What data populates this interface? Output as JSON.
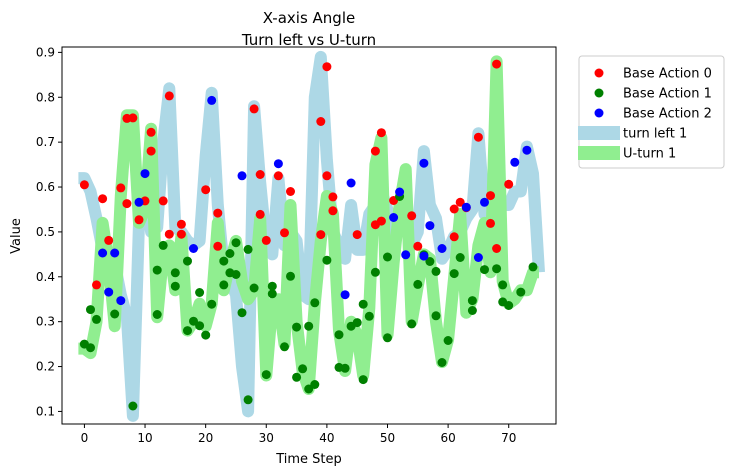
{
  "chart_data": {
    "type": "scatter",
    "title": "X-axis Angle",
    "subtitle": "Turn left vs U-turn",
    "xlabel": "Time Step",
    "ylabel": "Value",
    "xlim": [
      -3.7,
      77.8
    ],
    "ylim": [
      0.072,
      0.912
    ],
    "xticks": [
      0,
      10,
      20,
      30,
      40,
      50,
      60,
      70
    ],
    "yticks": [
      0.1,
      0.2,
      0.3,
      0.4,
      0.5,
      0.6,
      0.7,
      0.8,
      0.9
    ],
    "legend_position": "outside-right-top",
    "colors": {
      "base0": "#ff0000",
      "base1": "#008000",
      "base2": "#0000ff",
      "band_turn_left": "#add8e6",
      "band_uturn": "#90ee90"
    },
    "series": [
      {
        "name": "Base Action 0",
        "kind": "points",
        "points": [
          [
            0,
            0.605
          ],
          [
            2,
            0.382
          ],
          [
            3,
            0.574
          ],
          [
            4,
            0.481
          ],
          [
            6,
            0.598
          ],
          [
            7,
            0.563
          ],
          [
            7,
            0.753
          ],
          [
            8,
            0.754
          ],
          [
            9,
            0.527
          ],
          [
            10,
            0.569
          ],
          [
            11,
            0.722
          ],
          [
            11,
            0.68
          ],
          [
            13,
            0.569
          ],
          [
            14,
            0.803
          ],
          [
            14,
            0.495
          ],
          [
            16,
            0.517
          ],
          [
            16,
            0.495
          ],
          [
            20,
            0.594
          ],
          [
            22,
            0.542
          ],
          [
            22,
            0.468
          ],
          [
            28,
            0.774
          ],
          [
            29,
            0.628
          ],
          [
            29,
            0.539
          ],
          [
            30,
            0.481
          ],
          [
            32,
            0.625
          ],
          [
            33,
            0.498
          ],
          [
            34,
            0.59
          ],
          [
            39,
            0.746
          ],
          [
            39,
            0.494
          ],
          [
            40,
            0.868
          ],
          [
            40,
            0.625
          ],
          [
            41,
            0.578
          ],
          [
            41,
            0.547
          ],
          [
            45,
            0.494
          ],
          [
            48,
            0.68
          ],
          [
            48,
            0.516
          ],
          [
            49,
            0.524
          ],
          [
            49,
            0.721
          ],
          [
            51,
            0.57
          ],
          [
            54,
            0.536
          ],
          [
            55,
            0.468
          ],
          [
            61,
            0.551
          ],
          [
            61,
            0.489
          ],
          [
            62,
            0.566
          ],
          [
            63,
            0.554
          ],
          [
            65,
            0.711
          ],
          [
            67,
            0.519
          ],
          [
            67,
            0.581
          ],
          [
            68,
            0.874
          ],
          [
            68,
            0.463
          ],
          [
            70,
            0.606
          ]
        ]
      },
      {
        "name": "Base Action 1",
        "kind": "points",
        "points": [
          [
            0,
            0.25
          ],
          [
            1,
            0.242
          ],
          [
            1,
            0.327
          ],
          [
            2,
            0.305
          ],
          [
            5,
            0.317
          ],
          [
            8,
            0.112
          ],
          [
            12,
            0.316
          ],
          [
            12,
            0.415
          ],
          [
            13,
            0.47
          ],
          [
            15,
            0.409
          ],
          [
            15,
            0.379
          ],
          [
            17,
            0.28
          ],
          [
            17,
            0.435
          ],
          [
            18,
            0.301
          ],
          [
            19,
            0.365
          ],
          [
            19,
            0.291
          ],
          [
            20,
            0.27
          ],
          [
            21,
            0.339
          ],
          [
            23,
            0.382
          ],
          [
            23,
            0.435
          ],
          [
            24,
            0.452
          ],
          [
            24,
            0.409
          ],
          [
            25,
            0.476
          ],
          [
            25,
            0.405
          ],
          [
            26,
            0.32
          ],
          [
            27,
            0.126
          ],
          [
            27,
            0.461
          ],
          [
            28,
            0.375
          ],
          [
            30,
            0.182
          ],
          [
            31,
            0.362
          ],
          [
            31,
            0.379
          ],
          [
            33,
            0.244
          ],
          [
            34,
            0.401
          ],
          [
            35,
            0.176
          ],
          [
            35,
            0.288
          ],
          [
            36,
            0.195
          ],
          [
            37,
            0.15
          ],
          [
            37,
            0.29
          ],
          [
            38,
            0.16
          ],
          [
            38,
            0.342
          ],
          [
            40,
            0.437
          ],
          [
            42,
            0.271
          ],
          [
            42,
            0.198
          ],
          [
            43,
            0.196
          ],
          [
            44,
            0.29
          ],
          [
            45,
            0.298
          ],
          [
            46,
            0.171
          ],
          [
            46,
            0.339
          ],
          [
            47,
            0.312
          ],
          [
            48,
            0.41
          ],
          [
            50,
            0.264
          ],
          [
            50,
            0.444
          ],
          [
            52,
            0.579
          ],
          [
            54,
            0.295
          ],
          [
            55,
            0.383
          ],
          [
            56,
            0.449
          ],
          [
            57,
            0.434
          ],
          [
            58,
            0.313
          ],
          [
            58,
            0.412
          ],
          [
            59,
            0.209
          ],
          [
            60,
            0.258
          ],
          [
            61,
            0.407
          ],
          [
            62,
            0.443
          ],
          [
            64,
            0.325
          ],
          [
            64,
            0.347
          ],
          [
            66,
            0.416
          ],
          [
            68,
            0.418
          ],
          [
            69,
            0.382
          ],
          [
            69,
            0.344
          ],
          [
            70,
            0.336
          ],
          [
            72,
            0.366
          ],
          [
            74,
            0.422
          ]
        ]
      },
      {
        "name": "Base Action 2",
        "kind": "points",
        "points": [
          [
            3,
            0.453
          ],
          [
            4,
            0.366
          ],
          [
            5,
            0.453
          ],
          [
            6,
            0.347
          ],
          [
            9,
            0.566
          ],
          [
            10,
            0.63
          ],
          [
            18,
            0.463
          ],
          [
            21,
            0.793
          ],
          [
            26,
            0.625
          ],
          [
            32,
            0.652
          ],
          [
            43,
            0.36
          ],
          [
            44,
            0.609
          ],
          [
            51,
            0.532
          ],
          [
            52,
            0.589
          ],
          [
            53,
            0.449
          ],
          [
            56,
            0.653
          ],
          [
            56,
            0.446
          ],
          [
            57,
            0.514
          ],
          [
            59,
            0.463
          ],
          [
            63,
            0.555
          ],
          [
            65,
            0.443
          ],
          [
            66,
            0.566
          ],
          [
            71,
            0.655
          ],
          [
            73,
            0.682
          ]
        ]
      },
      {
        "name": "turn left 1",
        "kind": "band",
        "x": [
          -1,
          0,
          1,
          2,
          3,
          4,
          5,
          6,
          7,
          8,
          9,
          10,
          11,
          12,
          13,
          14,
          15,
          16,
          17,
          18,
          19,
          20,
          21,
          22,
          23,
          24,
          25,
          26,
          27,
          28,
          29,
          30,
          31,
          32,
          33,
          34,
          35,
          36,
          37,
          38,
          39,
          40,
          41,
          42,
          43,
          44,
          45,
          46,
          47,
          48,
          49,
          50,
          51,
          52,
          53,
          54,
          55,
          56,
          57,
          58,
          59,
          60,
          61,
          62,
          63,
          64,
          65,
          66,
          67,
          68,
          69,
          70,
          71,
          72,
          73,
          74,
          75
        ],
        "y1": [
          0.62,
          0.62,
          0.59,
          0.53,
          0.46,
          0.42,
          0.43,
          0.36,
          0.31,
          0.09,
          0.52,
          0.61,
          0.5,
          0.51,
          0.7,
          0.82,
          0.51,
          0.5,
          0.48,
          0.47,
          0.48,
          0.67,
          0.81,
          0.56,
          0.42,
          0.39,
          0.36,
          0.2,
          0.1,
          0.78,
          0.61,
          0.47,
          0.45,
          0.62,
          0.47,
          0.5,
          0.48,
          0.36,
          0.35,
          0.8,
          0.89,
          0.66,
          0.5,
          0.47,
          0.44,
          0.56,
          0.46,
          0.46,
          0.54,
          0.56,
          0.59,
          0.55,
          0.49,
          0.52,
          0.52,
          0.47,
          0.5,
          0.68,
          0.56,
          0.53,
          0.44,
          0.46,
          0.49,
          0.5,
          0.53,
          0.55,
          0.72,
          0.54,
          0.57,
          0.59,
          0.56,
          0.56,
          0.59,
          0.59,
          0.69,
          0.63,
          0.41
        ],
        "y2": [
          0.62,
          0.62,
          0.59,
          0.53,
          0.46,
          0.42,
          0.43,
          0.36,
          0.31,
          0.09,
          0.52,
          0.61,
          0.5,
          0.51,
          0.7,
          0.82,
          0.51,
          0.5,
          0.48,
          0.47,
          0.48,
          0.67,
          0.81,
          0.56,
          0.42,
          0.39,
          0.36,
          0.2,
          0.1,
          0.78,
          0.61,
          0.47,
          0.45,
          0.62,
          0.47,
          0.5,
          0.48,
          0.36,
          0.35,
          0.8,
          0.89,
          0.66,
          0.5,
          0.47,
          0.44,
          0.56,
          0.46,
          0.46,
          0.54,
          0.56,
          0.59,
          0.55,
          0.49,
          0.52,
          0.52,
          0.47,
          0.5,
          0.68,
          0.56,
          0.53,
          0.44,
          0.46,
          0.49,
          0.5,
          0.53,
          0.55,
          0.72,
          0.54,
          0.57,
          0.59,
          0.56,
          0.56,
          0.59,
          0.59,
          0.69,
          0.63,
          0.41
        ]
      },
      {
        "name": "U-turn 1",
        "kind": "band",
        "x": [
          -1,
          0,
          1,
          2,
          3,
          4,
          5,
          6,
          7,
          8,
          9,
          10,
          11,
          12,
          13,
          14,
          15,
          16,
          17,
          18,
          19,
          20,
          21,
          22,
          23,
          24,
          25,
          26,
          27,
          28,
          29,
          30,
          31,
          32,
          33,
          34,
          35,
          36,
          37,
          38,
          39,
          40,
          41,
          42,
          43,
          44,
          45,
          46,
          47,
          48,
          49,
          50,
          51,
          52,
          53,
          54,
          55,
          56,
          57,
          58,
          59,
          60,
          61,
          62,
          63,
          64,
          65,
          66,
          67,
          68,
          69,
          70,
          71,
          72,
          73,
          74,
          75
        ],
        "y1": [
          0.24,
          0.24,
          0.23,
          0.3,
          0.52,
          0.43,
          0.29,
          0.58,
          0.76,
          0.76,
          0.52,
          0.55,
          0.73,
          0.31,
          0.45,
          0.47,
          0.37,
          0.49,
          0.28,
          0.3,
          0.34,
          0.29,
          0.34,
          0.52,
          0.37,
          0.43,
          0.48,
          0.39,
          0.35,
          0.37,
          0.53,
          0.18,
          0.34,
          0.35,
          0.25,
          0.56,
          0.3,
          0.19,
          0.15,
          0.34,
          0.48,
          0.58,
          0.54,
          0.28,
          0.19,
          0.3,
          0.27,
          0.18,
          0.33,
          0.65,
          0.71,
          0.27,
          0.43,
          0.56,
          0.64,
          0.3,
          0.38,
          0.45,
          0.44,
          0.3,
          0.21,
          0.26,
          0.4,
          0.54,
          0.32,
          0.35,
          0.47,
          0.52,
          0.41,
          0.88,
          0.39,
          0.34,
          0.35,
          0.37,
          0.37,
          0.41,
          0.41
        ],
        "y2": [
          0.24,
          0.24,
          0.23,
          0.3,
          0.52,
          0.43,
          0.29,
          0.58,
          0.76,
          0.76,
          0.52,
          0.55,
          0.73,
          0.31,
          0.45,
          0.47,
          0.37,
          0.49,
          0.28,
          0.3,
          0.34,
          0.29,
          0.34,
          0.52,
          0.37,
          0.43,
          0.48,
          0.39,
          0.35,
          0.37,
          0.53,
          0.18,
          0.34,
          0.35,
          0.25,
          0.56,
          0.3,
          0.19,
          0.15,
          0.34,
          0.48,
          0.58,
          0.54,
          0.28,
          0.19,
          0.3,
          0.27,
          0.18,
          0.33,
          0.65,
          0.71,
          0.27,
          0.43,
          0.56,
          0.64,
          0.3,
          0.38,
          0.45,
          0.44,
          0.3,
          0.21,
          0.26,
          0.4,
          0.54,
          0.32,
          0.35,
          0.47,
          0.52,
          0.41,
          0.88,
          0.39,
          0.34,
          0.35,
          0.37,
          0.37,
          0.41,
          0.41
        ]
      }
    ]
  }
}
